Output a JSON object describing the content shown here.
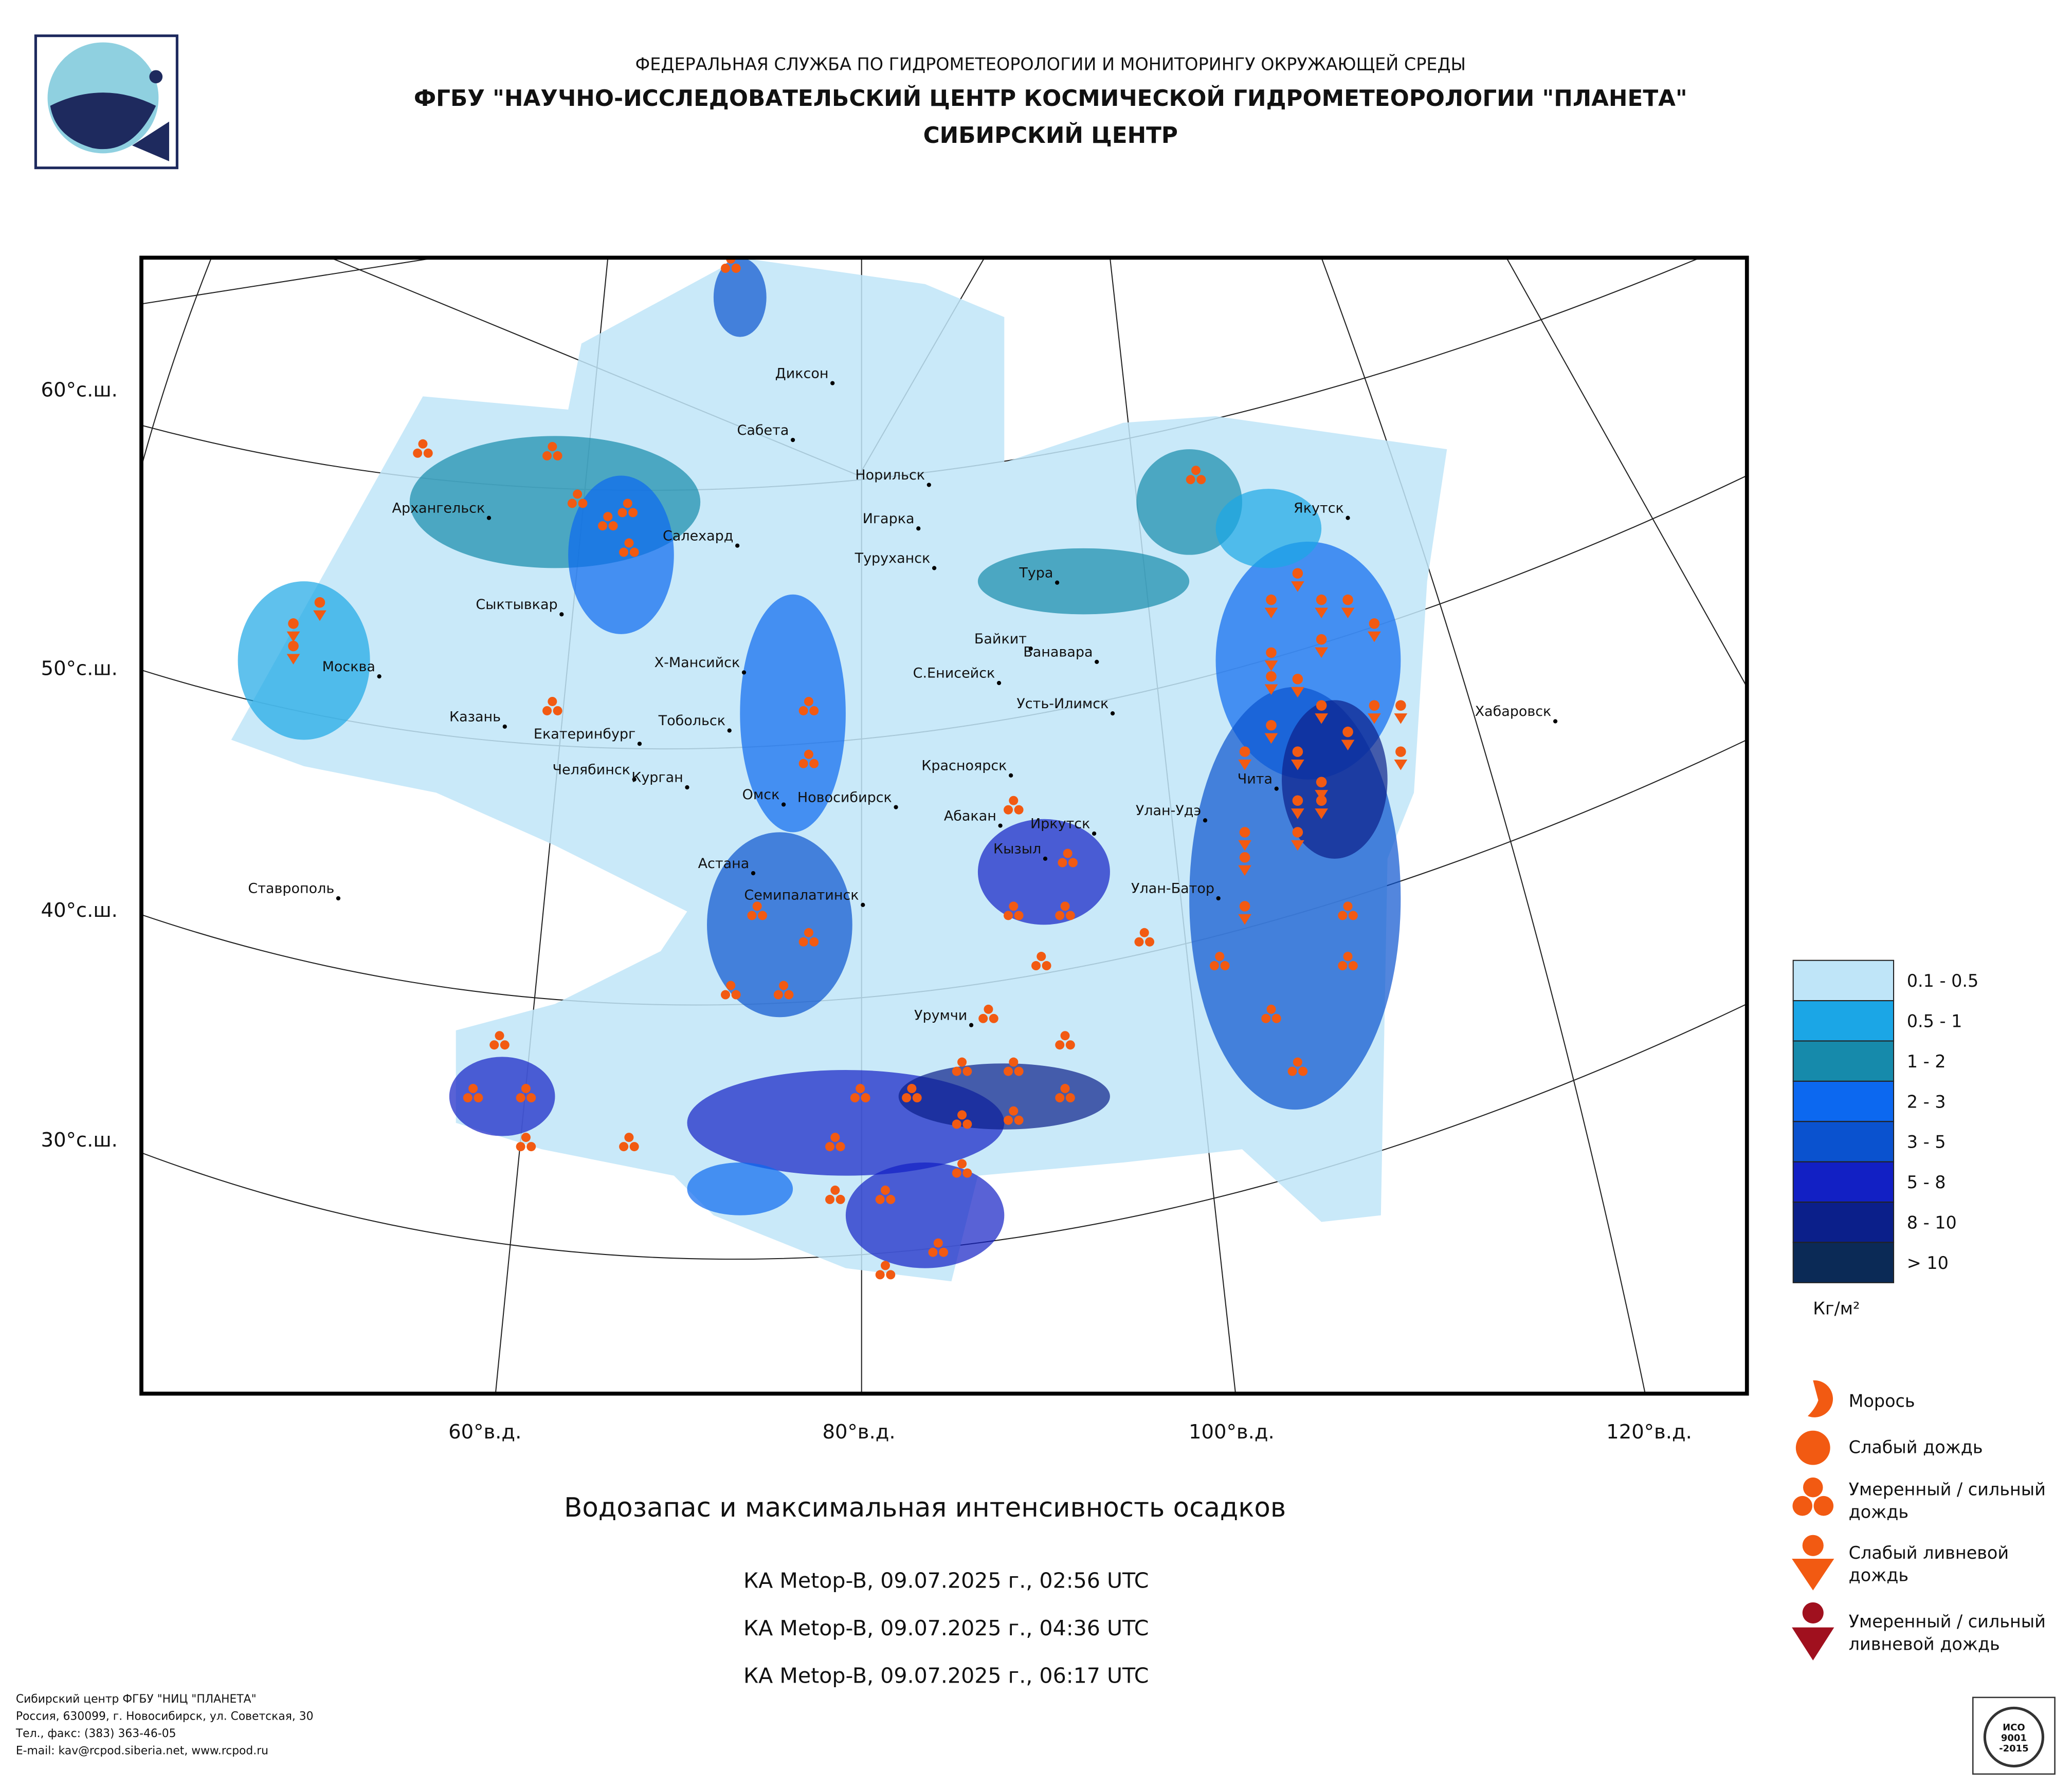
{
  "header": {
    "line1": "ФЕДЕРАЛЬНАЯ СЛУЖБА ПО ГИДРОМЕТЕОРОЛОГИИ И МОНИТОРИНГУ ОКРУЖАЮЩЕЙ СРЕДЫ",
    "line2": "ФГБУ \"НАУЧНО-ИССЛЕДОВАТЕЛЬСКИЙ ЦЕНТР КОСМИЧЕСКОЙ ГИДРОМЕТЕОРОЛОГИИ \"ПЛАНЕТА\"",
    "line3": "СИБИРСКИЙ ЦЕНТР"
  },
  "map": {
    "lat_labels": [
      "60°с.ш.",
      "50°с.ш.",
      "40°с.ш.",
      "30°с.ш."
    ],
    "lon_labels": [
      "60°в.д.",
      "80°в.д.",
      "100°в.д.",
      "120°в.д."
    ],
    "cities": [
      "Диксон",
      "Сабета",
      "Норильск",
      "Игарка",
      "Туруханск",
      "Архангельск",
      "Салехард",
      "Сыктывкар",
      "Тура",
      "Якутск",
      "Байкит",
      "Ванавара",
      "Москва",
      "Х-Мансийск",
      "С.Енисейск",
      "Усть-Илимск",
      "Хабаровск",
      "Казань",
      "Тобольск",
      "Екатеринбург",
      "Челябинск",
      "Курган",
      "Омск",
      "Новосибирск",
      "Красноярск",
      "Абакан",
      "Иркутск",
      "Улан-Удэ",
      "Чита",
      "Кызыл",
      "Астана",
      "Семипалатинск",
      "Ставрополь",
      "Улан-Батор",
      "Урумчи"
    ]
  },
  "legend": {
    "items": [
      {
        "label": "0.1 - 0.5",
        "color": "#bfe5f8"
      },
      {
        "label": "0.5 - 1",
        "color": "#1ba6e6"
      },
      {
        "label": "1 - 2",
        "color": "#168aab"
      },
      {
        "label": "2 - 3",
        "color": "#0c68f0"
      },
      {
        "label": "3 - 5",
        "color": "#0a52cf"
      },
      {
        "label": "5 - 8",
        "color": "#1220c4"
      },
      {
        "label": "8 - 10",
        "color": "#0b1f8a"
      },
      {
        "label": "> 10",
        "color": "#0b2a56"
      }
    ],
    "unit": "Кг/м²",
    "precip": [
      [
        "Морось"
      ],
      [
        "Слабый дождь"
      ],
      [
        "Умеренный / сильный",
        "дождь"
      ],
      [
        "Слабый ливневой",
        "дождь"
      ],
      [
        "Умеренный / сильный",
        "ливневой дождь"
      ]
    ]
  },
  "caption": "Водозапас и максимальная интенсивность осадков",
  "passes": [
    "КА Metop-B, 09.07.2025 г., 02:56 UTC",
    "КА Metop-B, 09.07.2025 г., 04:36 UTC",
    "КА Metop-B, 09.07.2025 г., 06:17 UTC"
  ],
  "footer": [
    "Сибирский центр ФГБУ \"НИЦ \"ПЛАНЕТА\"",
    "Россия, 630099, г. Новосибирск, ул. Советская, 30",
    "Тел., факс: (383) 363-46-05",
    "E-mail: kav@rcpod.siberia.net, www.rcpod.ru"
  ],
  "certificate": [
    "ИСО",
    "9001",
    "-2015"
  ]
}
